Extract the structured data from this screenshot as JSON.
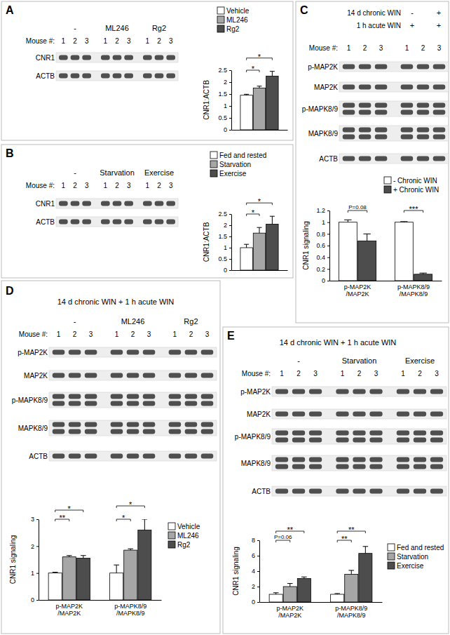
{
  "chart_data": [
    {
      "type": "bar",
      "panel": "A",
      "blot": {
        "groups": [
          "-",
          "ML246",
          "Rg2"
        ],
        "lanes_label": "Mouse #:",
        "lanes": [
          "1",
          "2",
          "3"
        ],
        "rows": [
          "CNR1",
          "ACTB"
        ]
      },
      "categories": [
        null
      ],
      "series": [
        {
          "name": "Vehicle",
          "color": "#ffffff",
          "values": [
            1.45
          ],
          "errors": [
            0.04
          ]
        },
        {
          "name": "ML246",
          "color": "#a6a6a6",
          "values": [
            1.75
          ],
          "errors": [
            0.08
          ]
        },
        {
          "name": "Rg2",
          "color": "#4d4d4d",
          "values": [
            2.25
          ],
          "errors": [
            0.2
          ]
        }
      ],
      "y_label": "CNR1:ACTB",
      "ylim": [
        0,
        2.5
      ],
      "yticks": [
        0,
        0.5,
        1,
        1.5,
        2,
        2.5
      ],
      "legend": "top",
      "annotations": [
        {
          "text": "*",
          "category": 0,
          "series": [
            0,
            1
          ]
        },
        {
          "text": "*",
          "category": 0,
          "series": [
            0,
            2
          ]
        }
      ]
    },
    {
      "type": "bar",
      "panel": "B",
      "blot": {
        "groups": [
          "-",
          "Starvation",
          "Exercise"
        ],
        "lanes_label": "Mouse #:",
        "lanes": [
          "1",
          "2",
          "3"
        ],
        "rows": [
          "CNR1",
          "ACTB"
        ]
      },
      "categories": [
        null
      ],
      "series": [
        {
          "name": "Fed and rested",
          "color": "#ffffff",
          "values": [
            1.0
          ],
          "errors": [
            0.15
          ]
        },
        {
          "name": "Starvation",
          "color": "#a6a6a6",
          "values": [
            1.65
          ],
          "errors": [
            0.25
          ]
        },
        {
          "name": "Exercise",
          "color": "#4d4d4d",
          "values": [
            2.05
          ],
          "errors": [
            0.35
          ]
        }
      ],
      "y_label": "CNR1:ACTB",
      "ylim": [
        0,
        2.5
      ],
      "yticks": [
        0,
        0.5,
        1,
        1.5,
        2,
        2.5
      ],
      "legend": "top",
      "annotations": [
        {
          "text": "*",
          "category": 0,
          "series": [
            0,
            1
          ]
        },
        {
          "text": "*",
          "category": 0,
          "series": [
            0,
            2
          ]
        }
      ]
    },
    {
      "type": "bar",
      "panel": "C",
      "blot": {
        "conditions": [
          {
            "label": "14 d chronic WIN",
            "groups": [
              "-",
              "+"
            ]
          },
          {
            "label": "1 h acute WIN",
            "groups": [
              "+",
              "+"
            ]
          }
        ],
        "lanes_label": "Mouse #:",
        "lanes": [
          "1",
          "2",
          "3"
        ],
        "rows": [
          "p-MAP2K",
          "MAP2K",
          "p-MAPK8/9",
          "MAPK8/9",
          "ACTB"
        ]
      },
      "categories": [
        "p-MAP2K\n/MAP2K",
        "p-MAPK8/9\n/MAPK8/9"
      ],
      "series": [
        {
          "name": "- Chronic WIN",
          "color": "#ffffff",
          "values": [
            1.0,
            1.0
          ],
          "errors": [
            0.04,
            0.01
          ]
        },
        {
          "name": "+ Chronic WIN",
          "color": "#4d4d4d",
          "values": [
            0.68,
            0.11
          ],
          "errors": [
            0.12,
            0.02
          ]
        }
      ],
      "y_label": "CNR1 signaling",
      "ylim": [
        0,
        1.2
      ],
      "yticks": [
        0,
        0.2,
        0.4,
        0.6,
        0.8,
        1,
        1.2
      ],
      "legend": "top",
      "annotations": [
        {
          "text": "P=0.08",
          "category": 0,
          "series": [
            0,
            1
          ]
        },
        {
          "text": "***",
          "category": 1,
          "series": [
            0,
            1
          ]
        }
      ]
    },
    {
      "type": "bar",
      "panel": "D",
      "title": "14 d chronic WIN + 1 h acute WIN",
      "blot": {
        "groups": [
          "-",
          "ML246",
          "Rg2"
        ],
        "lanes_label": "Mouse #:",
        "lanes": [
          "1",
          "2",
          "3"
        ],
        "rows": [
          "p-MAP2K",
          "MAP2K",
          "p-MAPK8/9",
          "MAPK8/9",
          "ACTB"
        ]
      },
      "categories": [
        "p-MAP2K\n/MAP2K",
        "p-MAPK8/9\n/MAPK8/9"
      ],
      "series": [
        {
          "name": "Vehicle",
          "color": "#ffffff",
          "values": [
            1.0,
            1.0
          ],
          "errors": [
            0.03,
            0.3
          ]
        },
        {
          "name": "ML246",
          "color": "#a6a6a6",
          "values": [
            1.6,
            1.85
          ],
          "errors": [
            0.05,
            0.05
          ]
        },
        {
          "name": "Rg2",
          "color": "#4d4d4d",
          "values": [
            1.55,
            2.6
          ],
          "errors": [
            0.1,
            0.4
          ]
        }
      ],
      "y_label": "CNR1 signaling",
      "ylim": [
        0,
        3
      ],
      "yticks": [
        0,
        1,
        2,
        3
      ],
      "legend": "right",
      "annotations": [
        {
          "text": "**",
          "category": 0,
          "series": [
            0,
            1
          ]
        },
        {
          "text": "*",
          "category": 0,
          "series": [
            0,
            2
          ]
        },
        {
          "text": "*",
          "category": 1,
          "series": [
            0,
            1
          ]
        },
        {
          "text": "*",
          "category": 1,
          "series": [
            0,
            2
          ]
        }
      ]
    },
    {
      "type": "bar",
      "panel": "E",
      "title": "14 d chronic WIN + 1 h acute WIN",
      "blot": {
        "groups": [
          "-",
          "Starvation",
          "Exercise"
        ],
        "lanes_label": "Mouse #:",
        "lanes": [
          "1",
          "2",
          "3"
        ],
        "rows": [
          "p-MAP2K",
          "MAP2K",
          "p-MAPK8/9",
          "MAPK8/9",
          "ACTB"
        ]
      },
      "categories": [
        "p-MAP2K\n/MAP2K",
        "p-MAPK8/9\n/MAPK8/9"
      ],
      "series": [
        {
          "name": "Fed and rested",
          "color": "#ffffff",
          "values": [
            1.0,
            1.0
          ],
          "errors": [
            0.2,
            0.1
          ]
        },
        {
          "name": "Starvation",
          "color": "#a6a6a6",
          "values": [
            2.0,
            3.6
          ],
          "errors": [
            0.4,
            0.5
          ]
        },
        {
          "name": "Exercise",
          "color": "#4d4d4d",
          "values": [
            3.05,
            6.3
          ],
          "errors": [
            0.2,
            0.9
          ]
        }
      ],
      "y_label": "CNR1 signaling",
      "ylim": [
        0,
        8
      ],
      "yticks": [
        0,
        2,
        4,
        6,
        8
      ],
      "legend": "right",
      "annotations": [
        {
          "text": "P=0.06",
          "category": 0,
          "series": [
            0,
            1
          ]
        },
        {
          "text": "**",
          "category": 0,
          "series": [
            0,
            2
          ]
        },
        {
          "text": "**",
          "category": 1,
          "series": [
            0,
            1
          ]
        },
        {
          "text": "**",
          "category": 1,
          "series": [
            0,
            2
          ]
        }
      ]
    }
  ]
}
